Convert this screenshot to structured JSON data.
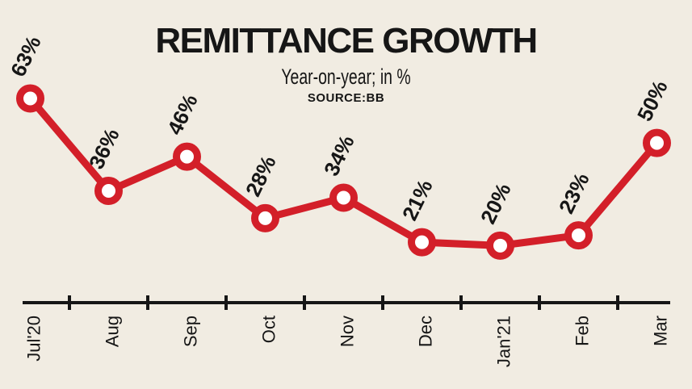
{
  "header": {
    "title": "REMITTANCE GROWTH",
    "subtitle": "Year-on-year; in %",
    "source": "SOURCE:BB"
  },
  "colors": {
    "background": "#F1ECE2",
    "line": "#D31F29",
    "marker_fill": "#FFFFFF",
    "text": "#161616"
  },
  "chart_data": {
    "type": "line",
    "title": "REMITTANCE GROWTH",
    "subtitle": "Year-on-year; in %",
    "source": "SOURCE:BB",
    "series_name": "Remittance growth, year-on-year",
    "categories": [
      "Jul'20",
      "Aug",
      "Sep",
      "Oct",
      "Nov",
      "Dec",
      "Jan'21",
      "Feb",
      "Mar"
    ],
    "values": [
      63,
      36,
      46,
      28,
      34,
      21,
      20,
      23,
      50
    ],
    "unit": "%",
    "xlabel": "",
    "ylabel": "",
    "ylim": [
      0,
      70
    ],
    "grid": false,
    "legend": false,
    "y_axis_shown": false,
    "marker": "open-circle",
    "value_label_rotation": -64,
    "x_tick_label_rotation": -90
  }
}
